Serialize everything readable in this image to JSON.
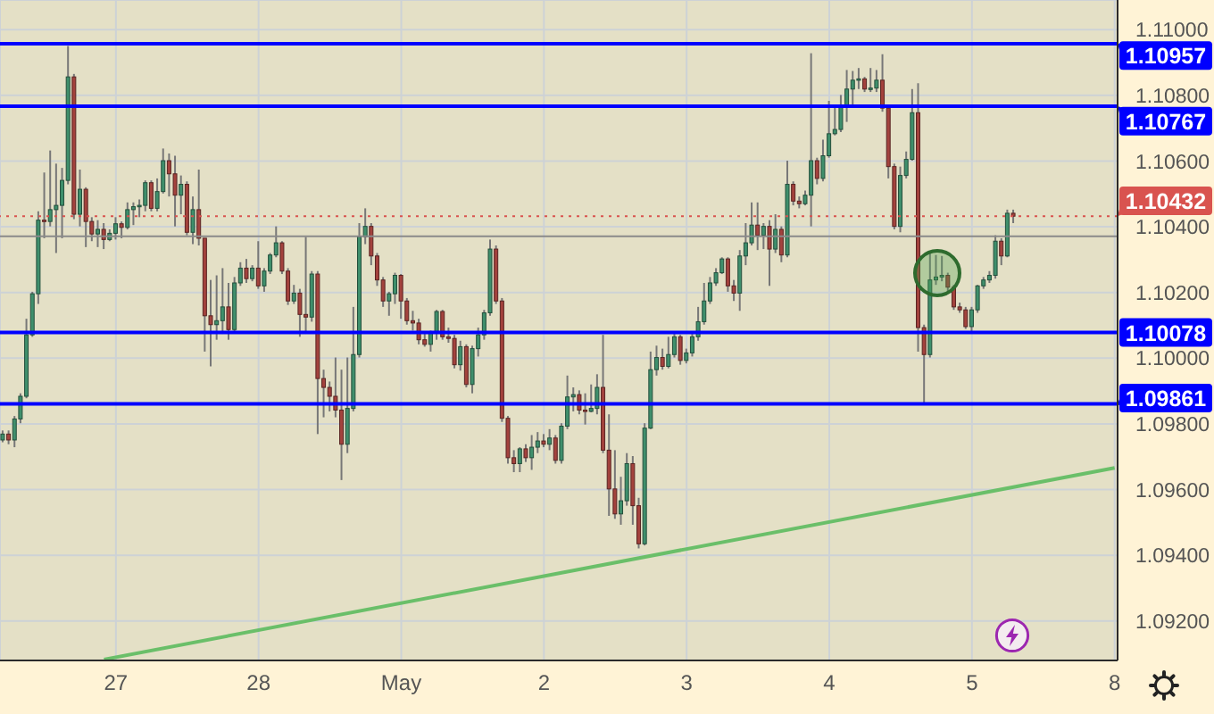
{
  "chart_data": {
    "type": "candlestick",
    "categories": [
      null,
      null,
      null,
      null,
      null,
      null,
      null,
      null,
      null,
      null,
      null,
      null,
      null,
      null,
      null,
      null,
      null,
      null,
      null,
      "27",
      null,
      null,
      null,
      null,
      null,
      null,
      null,
      null,
      null,
      null,
      null,
      null,
      null,
      null,
      null,
      null,
      null,
      null,
      null,
      null,
      null,
      null,
      null,
      "28",
      null,
      null,
      null,
      null,
      null,
      null,
      null,
      null,
      null,
      null,
      null,
      null,
      null,
      null,
      null,
      null,
      null,
      null,
      null,
      null,
      null,
      null,
      null,
      "May",
      null,
      null,
      null,
      null,
      null,
      null,
      null,
      null,
      null,
      null,
      null,
      null,
      null,
      null,
      null,
      null,
      null,
      null,
      null,
      null,
      null,
      null,
      null,
      "2",
      null,
      null,
      null,
      null,
      null,
      null,
      null,
      null,
      null,
      null,
      null,
      null,
      null,
      null,
      null,
      null,
      null,
      null,
      null,
      null,
      null,
      null,
      null,
      "3",
      null,
      null,
      null,
      null,
      null,
      null,
      null,
      null,
      null,
      null,
      null,
      null,
      null,
      null,
      null,
      null,
      null,
      null,
      null,
      null,
      null,
      null,
      null,
      "4",
      null,
      null,
      null,
      null,
      null,
      null,
      null,
      null,
      null,
      null,
      null,
      null,
      null,
      null,
      null,
      null,
      null,
      null,
      null,
      null,
      null,
      null,
      null,
      "5",
      null,
      null,
      null,
      null,
      null,
      null,
      null,
      null,
      null,
      null,
      null,
      null,
      null,
      null,
      null,
      null,
      null,
      null,
      null,
      null,
      null,
      null,
      null,
      "8"
    ],
    "ohlc": [
      [
        1.09751,
        1.0978,
        1.09744,
        1.09769
      ],
      [
        1.09769,
        1.0978,
        1.09738,
        1.09751
      ],
      [
        1.09751,
        1.09824,
        1.09729,
        1.09815
      ],
      [
        1.09815,
        1.09893,
        1.09802,
        1.09884
      ],
      [
        1.09884,
        1.1012,
        1.09878,
        1.10071
      ],
      [
        1.10071,
        1.10202,
        1.10065,
        1.10196
      ],
      [
        1.10196,
        1.10447,
        1.10165,
        1.1042
      ],
      [
        1.1042,
        1.10565,
        1.10365,
        1.10416
      ],
      [
        1.10416,
        1.10632,
        1.10401,
        1.10452
      ],
      [
        1.10452,
        1.10592,
        1.1032,
        1.10465
      ],
      [
        1.10465,
        1.10579,
        1.10365,
        1.10541
      ],
      [
        1.10541,
        1.1095,
        1.10529,
        1.10856
      ],
      [
        1.10856,
        1.10865,
        1.10423,
        1.10438
      ],
      [
        1.10438,
        1.10574,
        1.10401,
        1.10514
      ],
      [
        1.10514,
        1.1052,
        1.10338,
        1.10416
      ],
      [
        1.10416,
        1.10429,
        1.10356,
        1.10378
      ],
      [
        1.10378,
        1.1042,
        1.10338,
        1.10392
      ],
      [
        1.10392,
        1.10411,
        1.10332,
        1.10361
      ],
      [
        1.10361,
        1.10392,
        1.10356,
        1.1038
      ],
      [
        1.1038,
        1.10429,
        1.10361,
        1.10409
      ],
      [
        1.10409,
        1.10416,
        1.10365,
        1.10398
      ],
      [
        1.10398,
        1.10474,
        1.10392,
        1.10452
      ],
      [
        1.10452,
        1.10474,
        1.10405,
        1.10461
      ],
      [
        1.10461,
        1.10483,
        1.10429,
        1.10465
      ],
      [
        1.10465,
        1.10541,
        1.10447,
        1.10534
      ],
      [
        1.10534,
        1.10541,
        1.10447,
        1.10456
      ],
      [
        1.10456,
        1.10547,
        1.10447,
        1.10507
      ],
      [
        1.10507,
        1.10638,
        1.10501,
        1.10601
      ],
      [
        1.10601,
        1.10623,
        1.10492,
        1.10561
      ],
      [
        1.10561,
        1.10616,
        1.10401,
        1.10496
      ],
      [
        1.10496,
        1.10556,
        1.10438,
        1.10529
      ],
      [
        1.10529,
        1.10538,
        1.10374,
        1.10383
      ],
      [
        1.10383,
        1.10492,
        1.10347,
        1.10452
      ],
      [
        1.10452,
        1.10574,
        1.10343,
        1.10365
      ],
      [
        1.10365,
        1.10365,
        1.1002,
        1.10129
      ],
      [
        1.10129,
        1.10238,
        1.09975,
        1.10102
      ],
      [
        1.10102,
        1.10252,
        1.10056,
        1.10114
      ],
      [
        1.10114,
        1.10274,
        1.10074,
        1.10156
      ],
      [
        1.10156,
        1.10229,
        1.10056,
        1.10087
      ],
      [
        1.10087,
        1.10247,
        1.10078,
        1.10229
      ],
      [
        1.10229,
        1.10292,
        1.1022,
        1.10274
      ],
      [
        1.10274,
        1.10302,
        1.10229,
        1.10242
      ],
      [
        1.10242,
        1.10283,
        1.10234,
        1.10274
      ],
      [
        1.10274,
        1.10356,
        1.10211,
        1.1022
      ],
      [
        1.1022,
        1.10274,
        1.10202,
        1.10265
      ],
      [
        1.10265,
        1.1032,
        1.10256,
        1.10314
      ],
      [
        1.10314,
        1.10401,
        1.10307,
        1.10351
      ],
      [
        1.10351,
        1.10356,
        1.10256,
        1.10265
      ],
      [
        1.10265,
        1.10274,
        1.10162,
        1.10174
      ],
      [
        1.10174,
        1.10223,
        1.10165,
        1.10198
      ],
      [
        1.10198,
        1.10211,
        1.10065,
        1.10133
      ],
      [
        1.10133,
        1.10369,
        1.10074,
        1.10125
      ],
      [
        1.10125,
        1.10265,
        1.10111,
        1.10256
      ],
      [
        1.10256,
        1.10265,
        1.09769,
        1.09938
      ],
      [
        1.09938,
        1.09965,
        1.0982,
        1.09911
      ],
      [
        1.09911,
        1.09929,
        1.09838,
        1.09884
      ],
      [
        1.09884,
        1.10002,
        1.0982,
        1.09842
      ],
      [
        1.09842,
        1.09965,
        1.09629,
        1.09738
      ],
      [
        1.09738,
        1.10002,
        1.09711,
        1.09847
      ],
      [
        1.09847,
        1.10156,
        1.09838,
        1.10011
      ],
      [
        1.10011,
        1.10411,
        1.10002,
        1.10369
      ],
      [
        1.10369,
        1.10456,
        1.10347,
        1.10401
      ],
      [
        1.10401,
        1.10411,
        1.10283,
        1.10311
      ],
      [
        1.10311,
        1.1032,
        1.1022,
        1.10238
      ],
      [
        1.10238,
        1.10247,
        1.10156,
        1.10174
      ],
      [
        1.10174,
        1.10202,
        1.10129,
        1.10196
      ],
      [
        1.10196,
        1.1026,
        1.10165,
        1.10252
      ],
      [
        1.10252,
        1.10256,
        1.1012,
        1.10174
      ],
      [
        1.10174,
        1.10183,
        1.10102,
        1.10114
      ],
      [
        1.10114,
        1.10144,
        1.10084,
        1.10107
      ],
      [
        1.10107,
        1.1012,
        1.10042,
        1.10056
      ],
      [
        1.10056,
        1.10078,
        1.10035,
        1.10042
      ],
      [
        1.10042,
        1.10084,
        1.1002,
        1.10078
      ],
      [
        1.10078,
        1.10147,
        1.10056,
        1.10142
      ],
      [
        1.10142,
        1.10147,
        1.10056,
        1.10065
      ],
      [
        1.10065,
        1.10093,
        1.10047,
        1.1006
      ],
      [
        1.1006,
        1.10071,
        1.09969,
        1.0998
      ],
      [
        1.0998,
        1.10053,
        1.09962,
        1.10035
      ],
      [
        1.10035,
        1.10042,
        1.09911,
        1.0992
      ],
      [
        1.0992,
        1.10038,
        1.09893,
        1.10029
      ],
      [
        1.10029,
        1.10093,
        1.10005,
        1.10071
      ],
      [
        1.10071,
        1.10147,
        1.10056,
        1.10138
      ],
      [
        1.10138,
        1.10361,
        1.10129,
        1.10332
      ],
      [
        1.10332,
        1.10343,
        1.10165,
        1.10174
      ],
      [
        1.10174,
        1.10183,
        1.09806,
        1.09817
      ],
      [
        1.09817,
        1.09824,
        1.09679,
        1.09697
      ],
      [
        1.09697,
        1.0972,
        1.09653,
        1.09679
      ],
      [
        1.09679,
        1.09729,
        1.09653,
        1.09724
      ],
      [
        1.09724,
        1.09738,
        1.09684,
        1.09697
      ],
      [
        1.09697,
        1.09766,
        1.0966,
        1.09729
      ],
      [
        1.09729,
        1.09775,
        1.09711,
        1.09748
      ],
      [
        1.09748,
        1.09769,
        1.09729,
        1.09738
      ],
      [
        1.09738,
        1.09784,
        1.0972,
        1.09757
      ],
      [
        1.09757,
        1.09766,
        1.09679,
        1.09689
      ],
      [
        1.09689,
        1.09802,
        1.09679,
        1.09793
      ],
      [
        1.09793,
        1.09947,
        1.09784,
        1.09882
      ],
      [
        1.09882,
        1.09911,
        1.09838,
        1.09889
      ],
      [
        1.09889,
        1.09902,
        1.09829,
        1.09842
      ],
      [
        1.09842,
        1.09893,
        1.09798,
        1.09838
      ],
      [
        1.09838,
        1.0992,
        1.09835,
        1.09847
      ],
      [
        1.09847,
        1.09951,
        1.09829,
        1.09911
      ],
      [
        1.09911,
        1.10071,
        1.09711,
        1.0972
      ],
      [
        1.0972,
        1.09829,
        1.0952,
        1.09602
      ],
      [
        1.09602,
        1.0972,
        1.09511,
        1.09526
      ],
      [
        1.09526,
        1.09639,
        1.09493,
        1.09566
      ],
      [
        1.09566,
        1.09711,
        1.09551,
        1.09679
      ],
      [
        1.09679,
        1.09702,
        1.09493,
        1.09551
      ],
      [
        1.09551,
        1.09575,
        1.09421,
        1.09435
      ],
      [
        1.09435,
        1.09802,
        1.0943,
        1.09787
      ],
      [
        1.09787,
        1.1002,
        1.09784,
        1.09965
      ],
      [
        1.09965,
        1.10038,
        1.09947,
        1.10002
      ],
      [
        1.10002,
        1.10029,
        1.09965,
        1.09975
      ],
      [
        1.09975,
        1.10065,
        1.09969,
        1.10011
      ],
      [
        1.10011,
        1.10074,
        1.10002,
        1.10065
      ],
      [
        1.10065,
        1.10071,
        1.0998,
        1.09993
      ],
      [
        1.09993,
        1.10029,
        1.09984,
        1.10016
      ],
      [
        1.10016,
        1.10074,
        1.10005,
        1.10065
      ],
      [
        1.10065,
        1.10156,
        1.10053,
        1.10111
      ],
      [
        1.10111,
        1.10229,
        1.10102,
        1.10174
      ],
      [
        1.10174,
        1.10247,
        1.10165,
        1.10229
      ],
      [
        1.10229,
        1.10274,
        1.1022,
        1.1026
      ],
      [
        1.1026,
        1.10307,
        1.10256,
        1.10302
      ],
      [
        1.10302,
        1.10307,
        1.10202,
        1.1022
      ],
      [
        1.1022,
        1.10238,
        1.10174,
        1.10198
      ],
      [
        1.10198,
        1.10329,
        1.10144,
        1.10311
      ],
      [
        1.10311,
        1.10411,
        1.10283,
        1.10351
      ],
      [
        1.10351,
        1.10474,
        1.10343,
        1.10405
      ],
      [
        1.10405,
        1.10474,
        1.10329,
        1.10374
      ],
      [
        1.10374,
        1.10411,
        1.10332,
        1.10401
      ],
      [
        1.10401,
        1.1042,
        1.1022,
        1.10332
      ],
      [
        1.10332,
        1.10438,
        1.1032,
        1.10392
      ],
      [
        1.10392,
        1.10401,
        1.10292,
        1.10314
      ],
      [
        1.10314,
        1.10601,
        1.10307,
        1.10529
      ],
      [
        1.10529,
        1.10538,
        1.10465,
        1.10478
      ],
      [
        1.10478,
        1.10492,
        1.10456,
        1.1047
      ],
      [
        1.1047,
        1.1051,
        1.10465,
        1.10496
      ],
      [
        1.10496,
        1.10928,
        1.10401,
        1.10601
      ],
      [
        1.10601,
        1.1061,
        1.10529,
        1.10547
      ],
      [
        1.10547,
        1.10665,
        1.10538,
        1.10616
      ],
      [
        1.10616,
        1.10783,
        1.1061,
        1.10683
      ],
      [
        1.10683,
        1.10768,
        1.10678,
        1.10696
      ],
      [
        1.10696,
        1.10801,
        1.10688,
        1.10768
      ],
      [
        1.10768,
        1.10877,
        1.10719,
        1.10819
      ],
      [
        1.10819,
        1.10874,
        1.10765,
        1.10846
      ],
      [
        1.10846,
        1.10883,
        1.10819,
        1.1085
      ],
      [
        1.1085,
        1.10856,
        1.1081,
        1.10819
      ],
      [
        1.10819,
        1.10883,
        1.1081,
        1.10822
      ],
      [
        1.10822,
        1.10877,
        1.1081,
        1.10846
      ],
      [
        1.10846,
        1.10925,
        1.1075,
        1.10761
      ],
      [
        1.10761,
        1.10765,
        1.10547,
        1.10583
      ],
      [
        1.10583,
        1.10592,
        1.10392,
        1.10401
      ],
      [
        1.10401,
        1.10583,
        1.10383,
        1.10556
      ],
      [
        1.10556,
        1.10629,
        1.10547,
        1.10605
      ],
      [
        1.10605,
        1.10819,
        1.10601,
        1.10747
      ],
      [
        1.10747,
        1.10837,
        1.1002,
        1.10093
      ],
      [
        1.10093,
        1.10102,
        1.09865,
        1.10011
      ],
      [
        1.10011,
        1.1032,
        1.10002,
        1.10238
      ],
      [
        1.10238,
        1.10314,
        1.10223,
        1.10247
      ],
      [
        1.10247,
        1.10311,
        1.10234,
        1.10252
      ],
      [
        1.10252,
        1.1026,
        1.10202,
        1.10216
      ],
      [
        1.10216,
        1.10223,
        1.10147,
        1.10156
      ],
      [
        1.10156,
        1.10169,
        1.10138,
        1.10147
      ],
      [
        1.10147,
        1.10156,
        1.10089,
        1.10096
      ],
      [
        1.10096,
        1.10156,
        1.10074,
        1.10147
      ],
      [
        1.10147,
        1.10223,
        1.10138,
        1.1022
      ],
      [
        1.1022,
        1.10247,
        1.10211,
        1.10238
      ],
      [
        1.10238,
        1.10265,
        1.10229,
        1.10252
      ],
      [
        1.10252,
        1.10374,
        1.10242,
        1.10356
      ],
      [
        1.10356,
        1.10365,
        1.10283,
        1.10311
      ],
      [
        1.10311,
        1.10452,
        1.10307,
        1.10441
      ],
      [
        1.10441,
        1.10452,
        1.10411,
        1.10432
      ],
      null,
      null,
      null,
      null,
      null,
      null,
      null,
      null,
      null,
      null,
      null,
      null,
      null,
      null,
      null,
      null,
      null
    ],
    "colors": [
      "#3f8f6c",
      "#a3423d",
      "#3f8f6c",
      "#3f8f6c",
      "#3f8f6c",
      "#3f8f6c",
      "#3f8f6c",
      "#a3423d",
      "#3f8f6c",
      "#3f8f6c",
      "#3f8f6c",
      "#3f8f6c",
      "#a3423d",
      "#3f8f6c",
      "#a3423d",
      "#a3423d",
      "#3f8f6c",
      "#a3423d",
      "#3f8f6c",
      "#3f8f6c",
      "#a3423d",
      "#3f8f6c",
      "#3f8f6c",
      "#3f8f6c",
      "#3f8f6c",
      "#a3423d",
      "#3f8f6c",
      "#3f8f6c",
      "#a3423d",
      "#a3423d",
      "#3f8f6c",
      "#a3423d",
      "#3f8f6c",
      "#a3423d",
      "#a3423d",
      "#a3423d",
      "#3f8f6c",
      "#3f8f6c",
      "#a3423d",
      "#3f8f6c",
      "#3f8f6c",
      "#a3423d",
      "#3f8f6c",
      "#a3423d",
      "#3f8f6c",
      "#3f8f6c",
      "#3f8f6c",
      "#a3423d",
      "#a3423d",
      "#3f8f6c",
      "#a3423d",
      "#a3423d",
      "#3f8f6c",
      "#a3423d",
      "#a3423d",
      "#a3423d",
      "#a3423d",
      "#a3423d",
      "#3f8f6c",
      "#3f8f6c",
      "#3f8f6c",
      "#3f8f6c",
      "#a3423d",
      "#a3423d",
      "#a3423d",
      "#3f8f6c",
      "#3f8f6c",
      "#a3423d",
      "#a3423d",
      "#a3423d",
      "#a3423d",
      "#a3423d",
      "#3f8f6c",
      "#3f8f6c",
      "#a3423d",
      "#a3423d",
      "#a3423d",
      "#3f8f6c",
      "#a3423d",
      "#3f8f6c",
      "#3f8f6c",
      "#3f8f6c",
      "#3f8f6c",
      "#a3423d",
      "#a3423d",
      "#a3423d",
      "#a3423d",
      "#3f8f6c",
      "#a3423d",
      "#3f8f6c",
      "#3f8f6c",
      "#a3423d",
      "#3f8f6c",
      "#a3423d",
      "#3f8f6c",
      "#3f8f6c",
      "#3f8f6c",
      "#a3423d",
      "#a3423d",
      "#3f8f6c",
      "#3f8f6c",
      "#a3423d",
      "#a3423d",
      "#a3423d",
      "#3f8f6c",
      "#3f8f6c",
      "#a3423d",
      "#a3423d",
      "#3f8f6c",
      "#3f8f6c",
      "#3f8f6c",
      "#a3423d",
      "#3f8f6c",
      "#3f8f6c",
      "#a3423d",
      "#3f8f6c",
      "#3f8f6c",
      "#3f8f6c",
      "#3f8f6c",
      "#3f8f6c",
      "#3f8f6c",
      "#3f8f6c",
      "#a3423d",
      "#a3423d",
      "#3f8f6c",
      "#3f8f6c",
      "#3f8f6c",
      "#a3423d",
      "#3f8f6c",
      "#a3423d",
      "#3f8f6c",
      "#a3423d",
      "#3f8f6c",
      "#a3423d",
      "#a3423d",
      "#3f8f6c",
      "#3f8f6c",
      "#a3423d",
      "#3f8f6c",
      "#3f8f6c",
      "#3f8f6c",
      "#3f8f6c",
      "#3f8f6c",
      "#3f8f6c",
      "#3f8f6c",
      "#a3423d",
      "#3f8f6c",
      "#3f8f6c",
      "#a3423d",
      "#a3423d",
      "#a3423d",
      "#3f8f6c",
      "#3f8f6c",
      "#3f8f6c",
      "#a3423d",
      "#a3423d",
      "#3f8f6c",
      "#3f8f6c",
      "#3f8f6c",
      "#a3423d",
      "#a3423d",
      "#a3423d",
      "#a3423d",
      "#3f8f6c",
      "#3f8f6c",
      "#3f8f6c",
      "#3f8f6c",
      "#3f8f6c",
      "#a3423d",
      "#3f8f6c",
      "#a3423d",
      null,
      null,
      null,
      null,
      null,
      null,
      null,
      null,
      null,
      null,
      null,
      null,
      null,
      null,
      null,
      null,
      null
    ],
    "series": [
      {
        "type": "line",
        "color": "#6abf69",
        "values": [
          null,
          null,
          null,
          null,
          null,
          null,
          null,
          null,
          null,
          null,
          null,
          null,
          null,
          null,
          null,
          null,
          null,
          1.09083,
          null,
          null,
          null,
          null,
          null,
          null,
          null,
          null,
          null,
          null,
          null,
          null,
          null,
          null,
          null,
          null,
          null,
          null,
          null,
          null,
          null,
          null,
          null,
          null,
          null,
          null,
          null,
          null,
          null,
          null,
          null,
          null,
          null,
          null,
          null,
          null,
          null,
          null,
          null,
          null,
          null,
          null,
          null,
          null,
          null,
          null,
          null,
          null,
          null,
          null,
          null,
          null,
          null,
          null,
          null,
          null,
          null,
          null,
          null,
          null,
          null,
          null,
          null,
          null,
          null,
          null,
          null,
          null,
          null,
          null,
          null,
          null,
          null,
          null,
          null,
          null,
          null,
          null,
          null,
          null,
          null,
          null,
          null,
          null,
          null,
          null,
          null,
          null,
          null,
          null,
          null,
          null,
          null,
          null,
          null,
          null,
          null,
          null,
          null,
          null,
          null,
          null,
          null,
          null,
          null,
          null,
          null,
          null,
          null,
          null,
          null,
          null,
          null,
          null,
          null,
          null,
          null,
          null,
          null,
          null,
          null,
          null,
          null,
          null,
          null,
          null,
          null,
          null,
          null,
          null,
          null,
          null,
          null,
          null,
          null,
          null,
          null,
          null,
          null,
          null,
          null,
          null,
          null,
          null,
          null,
          null,
          null,
          null,
          null,
          null,
          null,
          null,
          null,
          null,
          null,
          null,
          null,
          null,
          null,
          null,
          null,
          null,
          null,
          null,
          null,
          null,
          null,
          null,
          null,
          1.09666
        ]
      }
    ],
    "ylim": [
      1.0908,
      1.1109
    ],
    "yticks": [
      {
        "value": 1.092,
        "label": "1.09200"
      },
      {
        "value": 1.094,
        "label": "1.09400"
      },
      {
        "value": 1.096,
        "label": "1.09600"
      },
      {
        "value": 1.098,
        "label": "1.09800"
      },
      {
        "value": 1.1,
        "label": "1.10000"
      },
      {
        "value": 1.102,
        "label": "1.10200"
      },
      {
        "value": 1.104,
        "label": "1.10400"
      },
      {
        "value": 1.106,
        "label": "1.10600"
      },
      {
        "value": 1.108,
        "label": "1.10800"
      },
      {
        "value": 1.11,
        "label": "1.11000"
      }
    ],
    "grid": true,
    "ref_lines": [
      {
        "axis": "y",
        "value": 1.10957,
        "label": "1.10957",
        "color": "#0000ff"
      },
      {
        "axis": "y",
        "value": 1.10767,
        "label": "1.10767",
        "color": "#0000ff"
      },
      {
        "axis": "y",
        "value": 1.10078,
        "label": "1.10078",
        "color": "#0000ff"
      },
      {
        "axis": "y",
        "value": 1.09861,
        "label": "1.09861",
        "color": "#0000ff"
      },
      {
        "axis": "y",
        "value": 1.10371,
        "color": "#8a8a8a"
      },
      {
        "axis": "y",
        "value": 1.10432,
        "label": "1.10432",
        "color": "#d9534f",
        "line_style": "dotted"
      }
    ]
  }
}
